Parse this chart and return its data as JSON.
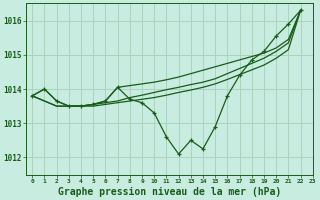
{
  "background_color": "#c8ece0",
  "grid_color": "#aad4c0",
  "line_color": "#1a5c1a",
  "marker_color": "#1a5c1a",
  "xlabel": "Graphe pression niveau de la mer (hPa)",
  "xlabel_fontsize": 7,
  "xlim": [
    -0.5,
    23
  ],
  "ylim": [
    1011.5,
    1016.5
  ],
  "yticks": [
    1012,
    1013,
    1014,
    1015,
    1016
  ],
  "xticks": [
    0,
    1,
    2,
    3,
    4,
    5,
    6,
    7,
    8,
    9,
    10,
    11,
    12,
    13,
    14,
    15,
    16,
    17,
    18,
    19,
    20,
    21,
    22,
    23
  ],
  "x_main": [
    0,
    1,
    2,
    3,
    4,
    5,
    6,
    7,
    8,
    9,
    10,
    11,
    12,
    13,
    14,
    15,
    16,
    17,
    18,
    19,
    20,
    21,
    22
  ],
  "y_main": [
    1013.8,
    1014.0,
    1013.65,
    1013.5,
    1013.5,
    1013.55,
    1013.65,
    1014.05,
    1013.7,
    1013.6,
    1013.3,
    1012.6,
    1012.1,
    1012.5,
    1012.25,
    1012.9,
    1013.8,
    1014.4,
    1014.85,
    1015.1,
    1015.55,
    1015.9,
    1016.3
  ],
  "y_trend1": [
    1013.8,
    1014.0,
    1013.65,
    1013.5,
    1013.5,
    1013.55,
    1013.65,
    1014.05,
    1014.1,
    1014.15,
    1014.2,
    1014.27,
    1014.35,
    1014.45,
    1014.55,
    1014.65,
    1014.75,
    1014.85,
    1014.95,
    1015.05,
    1015.2,
    1015.45,
    1016.3
  ],
  "y_trend2": [
    1013.8,
    1013.65,
    1013.5,
    1013.5,
    1013.5,
    1013.55,
    1013.6,
    1013.65,
    1013.75,
    1013.82,
    1013.9,
    1013.98,
    1014.05,
    1014.13,
    1014.2,
    1014.3,
    1014.45,
    1014.6,
    1014.75,
    1014.9,
    1015.1,
    1015.35,
    1016.3
  ],
  "y_trend3": [
    1013.8,
    1013.65,
    1013.5,
    1013.5,
    1013.5,
    1013.5,
    1013.55,
    1013.6,
    1013.65,
    1013.7,
    1013.75,
    1013.82,
    1013.9,
    1013.97,
    1014.05,
    1014.15,
    1014.28,
    1014.42,
    1014.56,
    1014.7,
    1014.9,
    1015.15,
    1016.3
  ]
}
